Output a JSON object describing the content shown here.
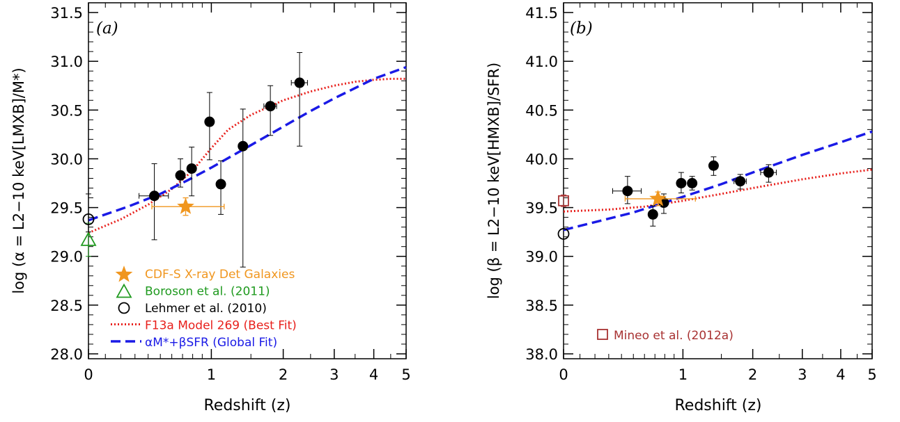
{
  "colors": {
    "cdfs": "#f0961e",
    "boroson": "#1f9a1f",
    "lehmer": "#000000",
    "f13a": "#e8201c",
    "global": "#1a1ae6",
    "mineo": "#a83232",
    "data": "#000000"
  },
  "chart_data": [
    {
      "type": "scatter",
      "panel_label": "(a)",
      "xlabel": "Redshift (z)",
      "ylabel": "log (α = L2−10 keV[LMXB]/M*)",
      "xlim": [
        0,
        5
      ],
      "x_scale": "log(1+z)",
      "ylim": [
        27.95,
        31.6
      ],
      "xticks": [
        "0",
        "1",
        "2",
        "3",
        "4",
        "5"
      ],
      "yticks": [
        "28.0",
        "28.5",
        "29.0",
        "29.5",
        "30.0",
        "30.5",
        "31.0",
        "31.5"
      ],
      "series": [
        {
          "name": "data",
          "points": [
            {
              "x": 0.45,
              "y": 29.62,
              "xerr": [
                0.12,
                0.12
              ],
              "yerr": [
                0.45,
                0.33
              ]
            },
            {
              "x": 0.68,
              "y": 29.83,
              "xerr": [
                0.03,
                0.03
              ],
              "yerr": [
                0.12,
                0.17
              ]
            },
            {
              "x": 0.79,
              "y": 29.9,
              "xerr": [
                0.04,
                0.04
              ],
              "yerr": [
                0.28,
                0.22
              ]
            },
            {
              "x": 0.98,
              "y": 30.38,
              "xerr": [
                0.03,
                0.03
              ],
              "yerr": [
                0.39,
                0.3
              ]
            },
            {
              "x": 1.11,
              "y": 29.74,
              "xerr": [
                0.03,
                0.03
              ],
              "yerr": [
                0.31,
                0.24
              ]
            },
            {
              "x": 1.39,
              "y": 30.13,
              "xerr": [
                0.02,
                0.02
              ],
              "yerr": [
                1.24,
                0.38
              ]
            },
            {
              "x": 1.79,
              "y": 30.54,
              "xerr": [
                0.1,
                0.1
              ],
              "yerr": [
                0.3,
                0.21
              ]
            },
            {
              "x": 2.29,
              "y": 30.78,
              "xerr": [
                0.15,
                0.15
              ],
              "yerr": [
                0.65,
                0.31
              ]
            }
          ]
        },
        {
          "name": "CDF-S X-ray Det Galaxies",
          "points": [
            {
              "x": 0.73,
              "y": 29.51,
              "xerr": [
                0.3,
                0.42
              ],
              "yerr": [
                0.09,
                0.09
              ]
            }
          ]
        },
        {
          "name": "Boroson et al. (2011)",
          "points": [
            {
              "x": 0.0,
              "y": 29.17,
              "yerr": [
                0.17,
                0.17
              ]
            }
          ]
        },
        {
          "name": "Lehmer et al. (2010)",
          "points": [
            {
              "x": 0.0,
              "y": 29.38,
              "yerr": [
                0.13,
                0.26
              ]
            }
          ]
        },
        {
          "name": "F13a Model 269 (Best Fit)",
          "curve": {
            "x": [
              0,
              0.2,
              0.4,
              0.6,
              0.8,
              1.0,
              1.2,
              1.5,
              2.0,
              2.5,
              3.0,
              3.5,
              4.0,
              4.5,
              5.0
            ],
            "y": [
              29.24,
              29.38,
              29.53,
              29.69,
              29.88,
              30.11,
              30.3,
              30.45,
              30.6,
              30.69,
              30.75,
              30.79,
              30.81,
              30.82,
              30.82
            ]
          }
        },
        {
          "name": "αM*+βSFR (Global Fit)",
          "curve": {
            "x": [
              0,
              0.25,
              0.5,
              0.75,
              1.0,
              1.5,
              2.0,
              2.5,
              3.0,
              4.0,
              5.0
            ],
            "y": [
              29.37,
              29.51,
              29.64,
              29.78,
              29.91,
              30.14,
              30.33,
              30.49,
              30.62,
              30.82,
              30.94
            ]
          }
        }
      ],
      "legend": [
        {
          "marker": "star",
          "color_key": "cdfs",
          "label": "CDF-S X-ray Det Galaxies"
        },
        {
          "marker": "triangle",
          "color_key": "boroson",
          "label": "Boroson et al. (2011)"
        },
        {
          "marker": "circle",
          "color_key": "lehmer",
          "label": "Lehmer et al. (2010)"
        },
        {
          "marker": "dotted-line",
          "color_key": "f13a",
          "label": "F13a Model 269 (Best Fit)"
        },
        {
          "marker": "dashed-line",
          "color_key": "global",
          "label": "αM*+βSFR (Global Fit)"
        }
      ],
      "legend_position": "bottom-left"
    },
    {
      "type": "scatter",
      "panel_label": "(b)",
      "xlabel": "Redshift (z)",
      "ylabel": "log (β = L2−10 keV[HMXB]/SFR)",
      "xlim": [
        0,
        5
      ],
      "x_scale": "log(1+z)",
      "ylim": [
        37.95,
        41.6
      ],
      "xticks": [
        "0",
        "1",
        "2",
        "3",
        "4",
        "5"
      ],
      "yticks": [
        "38.0",
        "38.5",
        "39.0",
        "39.5",
        "40.0",
        "40.5",
        "41.0",
        "41.5"
      ],
      "series": [
        {
          "name": "data",
          "points": [
            {
              "x": 0.45,
              "y": 39.67,
              "xerr": [
                0.12,
                0.12
              ],
              "yerr": [
                0.13,
                0.15
              ]
            },
            {
              "x": 0.68,
              "y": 39.43,
              "xerr": [
                0.03,
                0.03
              ],
              "yerr": [
                0.12,
                0.09
              ]
            },
            {
              "x": 0.79,
              "y": 39.55,
              "xerr": [
                0.04,
                0.04
              ],
              "yerr": [
                0.11,
                0.09
              ]
            },
            {
              "x": 0.98,
              "y": 39.75,
              "xerr": [
                0.03,
                0.03
              ],
              "yerr": [
                0.1,
                0.11
              ]
            },
            {
              "x": 1.11,
              "y": 39.75,
              "xerr": [
                0.05,
                0.05
              ],
              "yerr": [
                0.07,
                0.07
              ]
            },
            {
              "x": 1.39,
              "y": 39.93,
              "xerr": [
                0.03,
                0.03
              ],
              "yerr": [
                0.1,
                0.09
              ]
            },
            {
              "x": 1.79,
              "y": 39.77,
              "xerr": [
                0.1,
                0.1
              ],
              "yerr": [
                0.08,
                0.07
              ]
            },
            {
              "x": 2.29,
              "y": 39.86,
              "xerr": [
                0.15,
                0.15
              ],
              "yerr": [
                0.1,
                0.08
              ]
            }
          ]
        },
        {
          "name": "CDF-S X-ray Det Galaxies",
          "points": [
            {
              "x": 0.73,
              "y": 39.59,
              "xerr": [
                0.3,
                0.42
              ],
              "yerr": [
                0.07,
                0.07
              ]
            }
          ]
        },
        {
          "name": "Lehmer et al. (2010)",
          "points": [
            {
              "x": 0.0,
              "y": 39.23
            }
          ]
        },
        {
          "name": "Mineo et al. (2012a)",
          "points": [
            {
              "x": 0.0,
              "y": 39.57,
              "yerr": [
                0.06,
                0.06
              ]
            }
          ]
        },
        {
          "name": "F13a Model 269 (Best Fit)",
          "curve": {
            "x": [
              0,
              0.3,
              0.6,
              1.0,
              1.5,
              2.0,
              3.0,
              4.0,
              5.0
            ],
            "y": [
              39.46,
              39.48,
              39.51,
              39.57,
              39.64,
              39.7,
              39.79,
              39.85,
              39.89
            ]
          }
        },
        {
          "name": "αM*+βSFR (Global Fit)",
          "curve": {
            "x": [
              0,
              0.5,
              1.0,
              1.5,
              2.0,
              3.0,
              4.0,
              5.0
            ],
            "y": [
              39.27,
              39.45,
              39.61,
              39.74,
              39.86,
              40.04,
              40.17,
              40.28
            ]
          }
        }
      ],
      "legend": [
        {
          "marker": "square",
          "color_key": "mineo",
          "label": "Mineo et al. (2012a)"
        }
      ],
      "legend_position": "bottom-left"
    }
  ]
}
